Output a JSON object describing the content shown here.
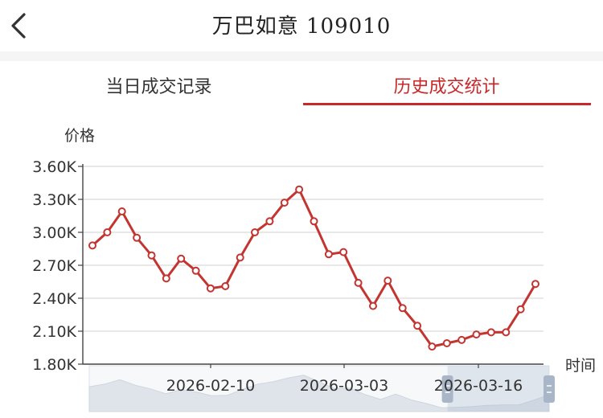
{
  "header": {
    "title": "万巴如意",
    "code": "109010"
  },
  "tabs": [
    {
      "label": "当日成交记录",
      "active": false
    },
    {
      "label": "历史成交统计",
      "active": true
    }
  ],
  "colors": {
    "accent": "#c8282a",
    "line": "#c23531",
    "grid": "#d0d0d0",
    "slider": "#a8b6c8"
  },
  "icons": {
    "back": "chevron-left-icon"
  },
  "chart_data": {
    "type": "line",
    "ylabel": "价格",
    "xlabel": "时间",
    "ylim": [
      1800,
      3600
    ],
    "y_ticks": [
      "1.80K",
      "2.10K",
      "2.40K",
      "2.70K",
      "3.00K",
      "3.30K",
      "3.60K"
    ],
    "x_ticks": [
      "2026-02-10",
      "2026-03-03",
      "2026-03-16"
    ],
    "grid": true,
    "series": [
      {
        "values": [
          2880,
          3000,
          3190,
          2950,
          2790,
          2580,
          2760,
          2650,
          2490,
          2510,
          2770,
          3000,
          3100,
          3270,
          3390,
          3100,
          2800,
          2820,
          2540,
          2330,
          2560,
          2310,
          2150,
          1960,
          1990,
          2020,
          2070,
          2090,
          2090,
          2300,
          2530
        ]
      }
    ],
    "data_zoom": {
      "start_fraction": 0.8,
      "end_fraction": 1.0
    }
  }
}
